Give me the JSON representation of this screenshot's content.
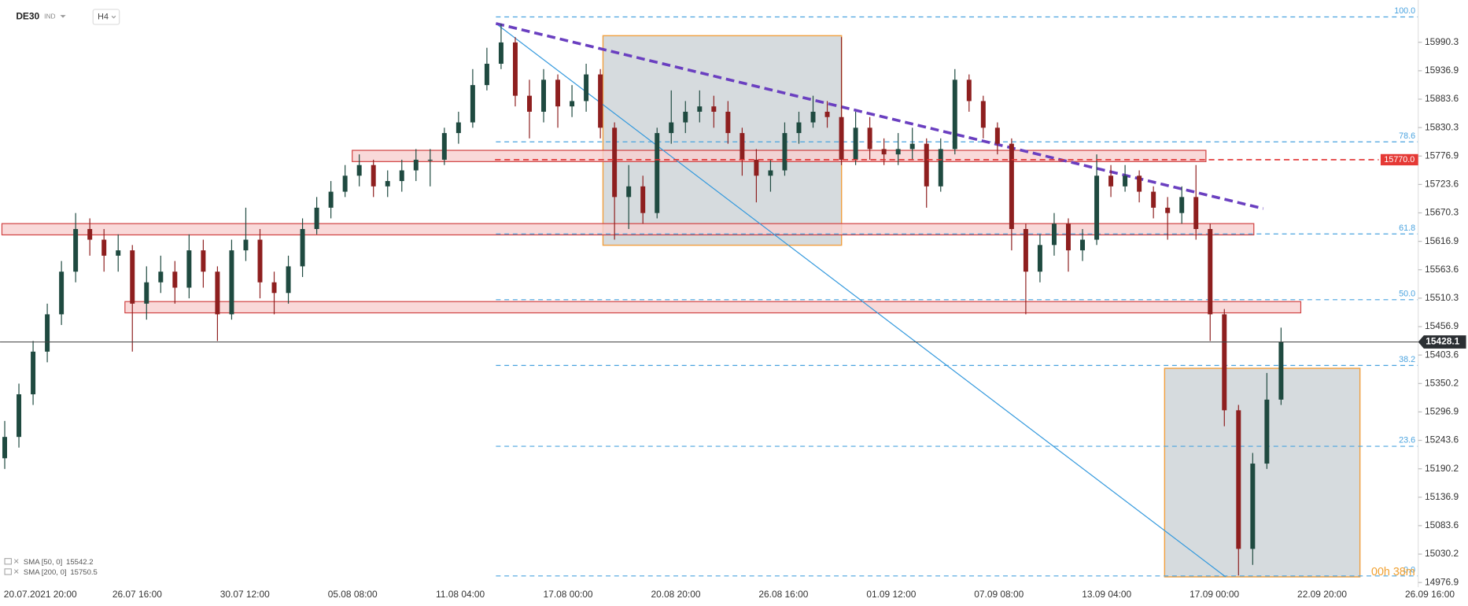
{
  "header": {
    "symbol": "DE30",
    "market": "IND",
    "timeframe": "H4"
  },
  "chart_data": {
    "type": "candlestick",
    "ylim": [
      14968.1,
      16069.6
    ],
    "yticks": [
      15990.3,
      15936.9,
      15883.6,
      15830.3,
      15776.9,
      15723.6,
      15670.3,
      15616.9,
      15563.6,
      15510.3,
      15456.9,
      15403.6,
      15350.2,
      15296.9,
      15243.6,
      15190.2,
      15136.9,
      15083.6,
      15030.2,
      14976.9
    ],
    "xticks": [
      "20.07.2021 20:00",
      "26.07 16:00",
      "30.07 12:00",
      "05.08 08:00",
      "11.08 04:00",
      "17.08 00:00",
      "20.08 20:00",
      "26.08 16:00",
      "01.09 12:00",
      "07.09 08:00",
      "13.09 04:00",
      "17.09 00:00",
      "22.09 20:00",
      "26.09 16:00"
    ],
    "up_color": "#1f4a40",
    "down_color": "#8e1f1f",
    "open": [
      15210,
      15250,
      15330,
      15410,
      15480,
      15560,
      15640,
      15620,
      15590,
      15600,
      15500,
      15540,
      15560,
      15530,
      15600,
      15560,
      15480,
      15600,
      15620,
      15540,
      15520,
      15570,
      15640,
      15680,
      15710,
      15740,
      15760,
      15720,
      15730,
      15750,
      15770,
      15770,
      15820,
      15840,
      15910,
      15950,
      15990,
      15890,
      15860,
      15920,
      15870,
      15880,
      15930,
      15830,
      15700,
      15720,
      15670,
      15820,
      15840,
      15860,
      15870,
      15860,
      15820,
      15770,
      15740,
      15750,
      15820,
      15840,
      15860,
      15850,
      15770,
      15830,
      15790,
      15780,
      15790,
      15800,
      15720,
      15790,
      15920,
      15880,
      15830,
      15800,
      15640,
      15560,
      15610,
      15650,
      15600,
      15620,
      15740,
      15720,
      15740,
      15710,
      15680,
      15670,
      15700,
      15640,
      15480,
      15300,
      15040,
      15200,
      15320
    ],
    "high": [
      15280,
      15350,
      15430,
      15500,
      15580,
      15670,
      15660,
      15640,
      15630,
      15610,
      15570,
      15590,
      15580,
      15630,
      15620,
      15570,
      15620,
      15680,
      15640,
      15560,
      15590,
      15660,
      15700,
      15730,
      15760,
      15780,
      15770,
      15750,
      15770,
      15790,
      15790,
      15830,
      15860,
      15940,
      15980,
      16025,
      16000,
      15920,
      15940,
      15930,
      15910,
      15950,
      15940,
      15840,
      15760,
      15740,
      15830,
      15900,
      15880,
      15900,
      15890,
      15880,
      15830,
      15790,
      15770,
      15840,
      15860,
      15890,
      15880,
      16000,
      15860,
      15850,
      15810,
      15820,
      15830,
      15810,
      15810,
      15940,
      15930,
      15890,
      15840,
      15810,
      15650,
      15630,
      15670,
      15660,
      15640,
      15780,
      15760,
      15760,
      15750,
      15720,
      15700,
      15720,
      15760,
      15650,
      15490,
      15310,
      15220,
      15370,
      15455
    ],
    "low": [
      15190,
      15230,
      15310,
      15390,
      15460,
      15540,
      15590,
      15560,
      15560,
      15410,
      15470,
      15520,
      15500,
      15510,
      15530,
      15430,
      15470,
      15580,
      15510,
      15480,
      15500,
      15550,
      15630,
      15660,
      15700,
      15720,
      15700,
      15700,
      15710,
      15730,
      15720,
      15760,
      15800,
      15830,
      15900,
      15940,
      15870,
      15810,
      15840,
      15830,
      15850,
      15860,
      15810,
      15620,
      15640,
      15650,
      15660,
      15800,
      15820,
      15840,
      15830,
      15800,
      15740,
      15690,
      15710,
      15740,
      15800,
      15830,
      15830,
      15760,
      15760,
      15770,
      15760,
      15760,
      15770,
      15680,
      15710,
      15780,
      15860,
      15810,
      15780,
      15600,
      15480,
      15540,
      15590,
      15560,
      15580,
      15610,
      15700,
      15710,
      15690,
      15660,
      15620,
      15650,
      15620,
      15430,
      15270,
      14990,
      15010,
      15190,
      15310
    ],
    "close": [
      15250,
      15330,
      15410,
      15480,
      15560,
      15640,
      15620,
      15590,
      15600,
      15500,
      15540,
      15560,
      15530,
      15600,
      15560,
      15480,
      15600,
      15620,
      15540,
      15520,
      15570,
      15640,
      15680,
      15710,
      15740,
      15760,
      15720,
      15730,
      15750,
      15770,
      15770,
      15820,
      15840,
      15910,
      15950,
      15990,
      15890,
      15860,
      15920,
      15870,
      15880,
      15930,
      15830,
      15700,
      15720,
      15670,
      15820,
      15840,
      15860,
      15870,
      15860,
      15820,
      15770,
      15740,
      15750,
      15820,
      15840,
      15860,
      15850,
      15770,
      15830,
      15790,
      15780,
      15790,
      15800,
      15720,
      15790,
      15920,
      15880,
      15830,
      15800,
      15640,
      15560,
      15610,
      15650,
      15600,
      15620,
      15740,
      15720,
      15740,
      15710,
      15680,
      15670,
      15700,
      15640,
      15480,
      15300,
      15040,
      15200,
      15320,
      15428.1
    ],
    "last_price": 15428.1,
    "alert_level": {
      "value": 15770,
      "label": "15770.0"
    },
    "fib_labels": [
      "100.0",
      "78.6",
      "61.8",
      "50.0",
      "38.2",
      "23.6",
      "0.0"
    ],
    "indicators": [
      {
        "label": "SMA [50, 0]",
        "value": 15542.2
      },
      {
        "label": "SMA [200, 0]",
        "value": 15750.5
      }
    ],
    "countdown": "00h 38m"
  }
}
